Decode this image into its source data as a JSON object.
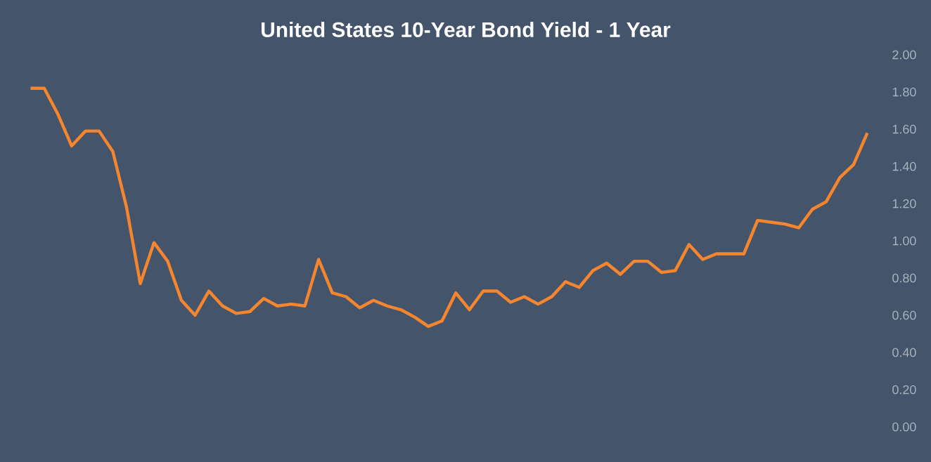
{
  "chart_data": {
    "type": "line",
    "title": "United States 10-Year Bond Yield - 1 Year",
    "categories": [
      null,
      null,
      null,
      null,
      null,
      null,
      null,
      null,
      null,
      null,
      null,
      null,
      null,
      null,
      null,
      null,
      null,
      null,
      null,
      null,
      null,
      null,
      null,
      null,
      null,
      null,
      null,
      null,
      null,
      null,
      null,
      null,
      null,
      null,
      null,
      null,
      null,
      null,
      null,
      null,
      null,
      null,
      null,
      null,
      null,
      null,
      null,
      null,
      null,
      null,
      null,
      null,
      null,
      null,
      null,
      null,
      null,
      null,
      null,
      null,
      null,
      null
    ],
    "values": [
      1.82,
      1.82,
      1.68,
      1.51,
      1.59,
      1.59,
      1.48,
      1.18,
      0.77,
      0.99,
      0.89,
      0.68,
      0.6,
      0.73,
      0.65,
      0.61,
      0.62,
      0.69,
      0.65,
      0.66,
      0.65,
      0.9,
      0.72,
      0.7,
      0.64,
      0.68,
      0.65,
      0.63,
      0.59,
      0.54,
      0.57,
      0.72,
      0.63,
      0.73,
      0.73,
      0.67,
      0.7,
      0.66,
      0.7,
      0.78,
      0.75,
      0.84,
      0.88,
      0.82,
      0.89,
      0.89,
      0.83,
      0.84,
      0.98,
      0.9,
      0.93,
      0.93,
      0.93,
      1.11,
      1.1,
      1.09,
      1.07,
      1.17,
      1.21,
      1.34,
      1.41,
      1.58
    ],
    "color": "#f5862e",
    "marker": "none",
    "line_style": "solid",
    "grid": false,
    "tick_labels": "y",
    "ylim": [
      0,
      2
    ],
    "yticks": [
      {
        "value": 0,
        "label": "0.00"
      },
      {
        "value": 0.2,
        "label": "0.20"
      },
      {
        "value": 0.4,
        "label": "0.40"
      },
      {
        "value": 0.6,
        "label": "0.60"
      },
      {
        "value": 0.8,
        "label": "0.80"
      },
      {
        "value": 1,
        "label": "1.00"
      },
      {
        "value": 1.2,
        "label": "1.20"
      },
      {
        "value": 1.4,
        "label": "1.40"
      },
      {
        "value": 1.6,
        "label": "1.60"
      },
      {
        "value": 1.8,
        "label": "1.80"
      },
      {
        "value": 2,
        "label": "2.00"
      }
    ]
  }
}
